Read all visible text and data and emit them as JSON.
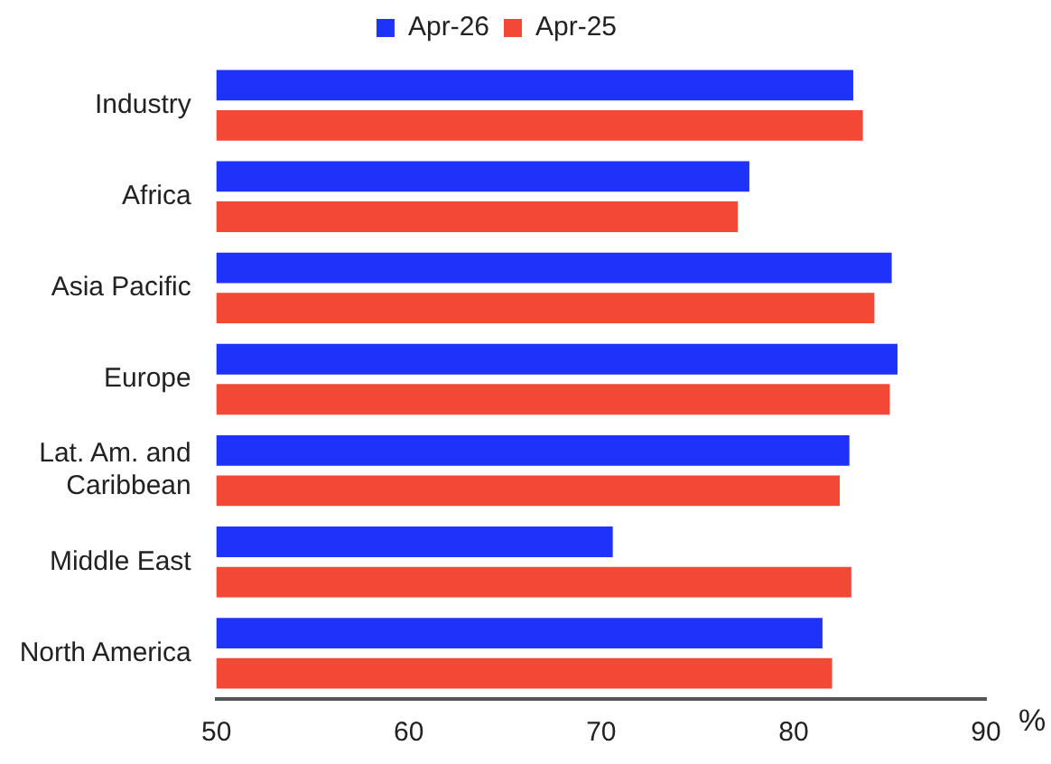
{
  "chart_data": {
    "type": "bar",
    "orientation": "horizontal",
    "xlabel": "%",
    "categories": [
      "Industry",
      "Africa",
      "Asia Pacific",
      "Europe",
      "Lat. Am. and Caribbean",
      "Middle East",
      "North America"
    ],
    "series": [
      {
        "name": "Apr-26",
        "color": "#1f32fa",
        "values": [
          83.1,
          77.7,
          85.1,
          85.4,
          82.9,
          70.6,
          81.5
        ]
      },
      {
        "name": "Apr-25",
        "color": "#f24835",
        "values": [
          83.6,
          77.1,
          84.2,
          85.0,
          82.4,
          83.0,
          82.0
        ]
      }
    ],
    "xlim": [
      50,
      90
    ],
    "xticks": [
      50,
      60,
      70,
      80,
      90
    ],
    "grid": false,
    "legend": "top"
  }
}
